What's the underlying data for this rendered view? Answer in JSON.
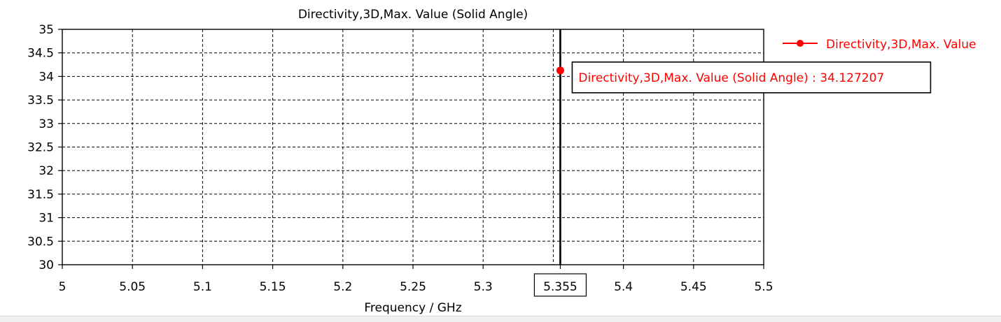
{
  "chart_data": {
    "type": "line",
    "title": "Directivity,3D,Max. Value (Solid Angle)",
    "xlabel": "Frequency / GHz",
    "ylabel": "",
    "xlim": [
      5,
      5.5
    ],
    "ylim": [
      30,
      35
    ],
    "x_ticks": [
      "5",
      "5.05",
      "5.1",
      "5.15",
      "5.2",
      "5.25",
      "5.3",
      "5.355",
      "5.4",
      "5.45",
      "5.5"
    ],
    "x_tick_values": [
      5,
      5.05,
      5.1,
      5.15,
      5.2,
      5.25,
      5.3,
      5.355,
      5.4,
      5.45,
      5.5
    ],
    "y_ticks": [
      "30",
      "30.5",
      "31",
      "31.5",
      "32",
      "32.5",
      "33",
      "33.5",
      "34",
      "34.5",
      "35"
    ],
    "y_tick_values": [
      30,
      30.5,
      31,
      31.5,
      32,
      32.5,
      33,
      33.5,
      34,
      34.5,
      35
    ],
    "grid": true,
    "legend_position": "top-right",
    "series": [
      {
        "name": "Directivity,3D,Max. Value",
        "color": "#ff0000",
        "x": [
          5.355
        ],
        "values": [
          34.127207
        ]
      }
    ],
    "marker": {
      "x": 5.355,
      "x_label": "5.355",
      "annotation": "Directivity,3D,Max. Value (Solid Angle) : 34.127207",
      "y": 34.127207
    }
  },
  "colors": {
    "series": "#ff0000",
    "axis": "#000000",
    "grid": "#000000",
    "background": "#ffffff"
  }
}
